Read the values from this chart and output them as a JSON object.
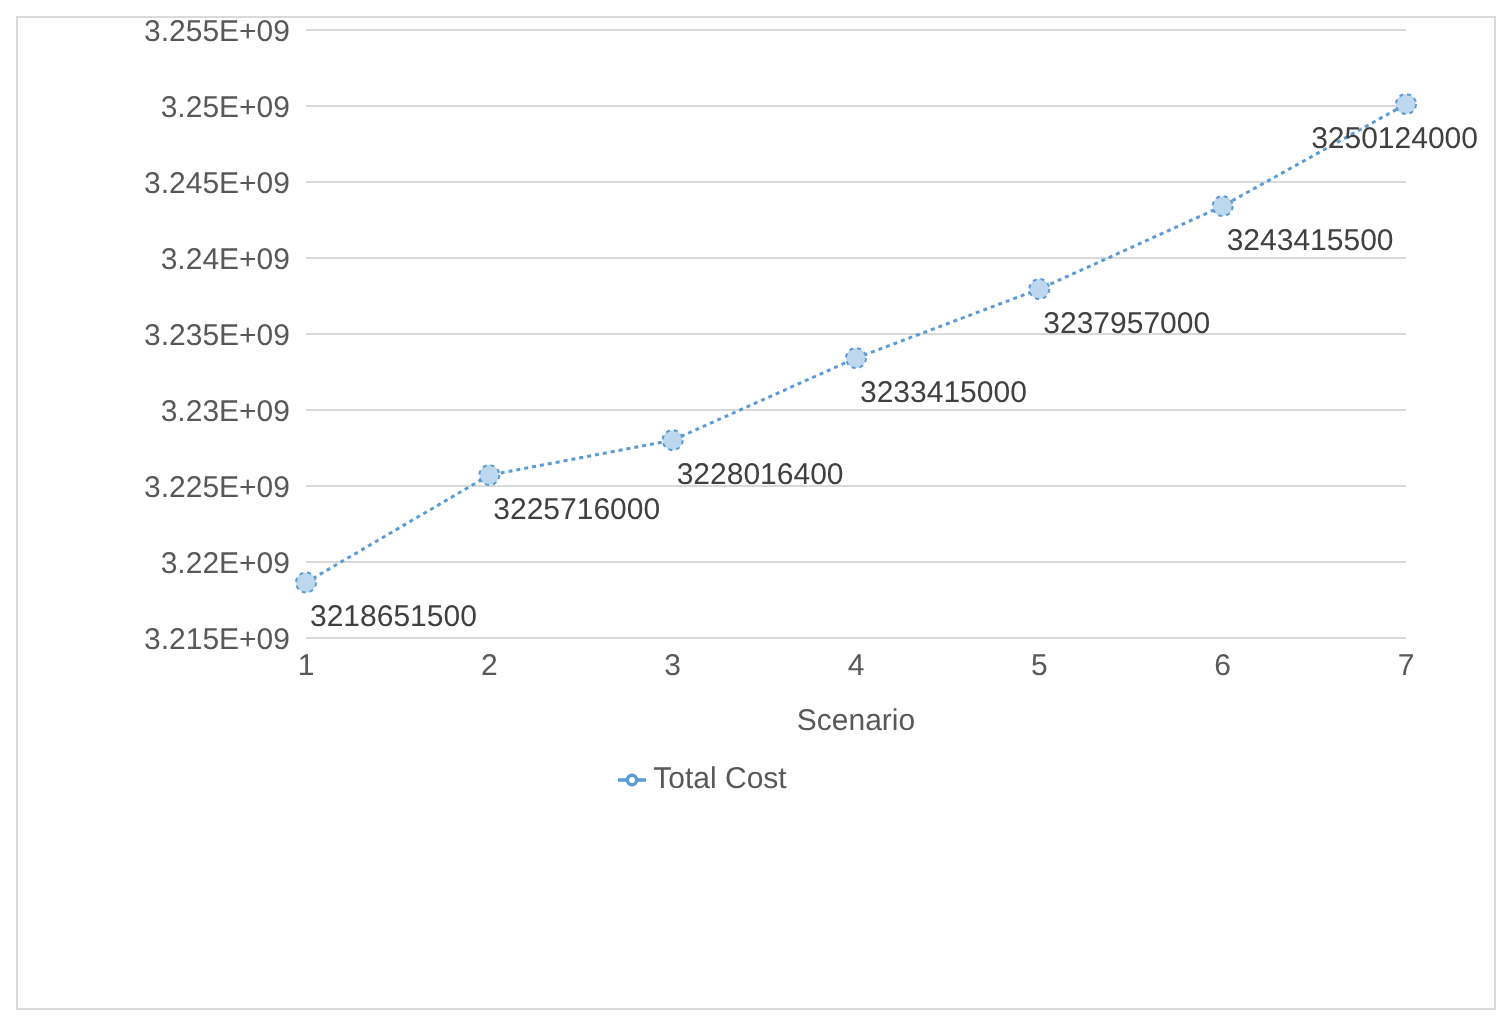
{
  "chart_data": {
    "type": "line",
    "xlabel": "Scenario",
    "categories": [
      "1",
      "2",
      "3",
      "4",
      "5",
      "6",
      "7"
    ],
    "series": [
      {
        "name": "Total Cost",
        "color": "#5b9bd5",
        "values": [
          3218651500,
          3225716000,
          3228016400,
          3233415000,
          3237957000,
          3243415500,
          3250124000
        ]
      }
    ],
    "ylim": [
      3215000000,
      3255000000
    ],
    "yticks": [
      {
        "value": 3215000000,
        "label": "3.215E+09"
      },
      {
        "value": 3220000000,
        "label": "3.22E+09"
      },
      {
        "value": 3225000000,
        "label": "3.225E+09"
      },
      {
        "value": 3230000000,
        "label": "3.23E+09"
      },
      {
        "value": 3235000000,
        "label": "3.235E+09"
      },
      {
        "value": 3240000000,
        "label": "3.24E+09"
      },
      {
        "value": 3245000000,
        "label": "3.245E+09"
      },
      {
        "value": 3250000000,
        "label": "3.25E+09"
      },
      {
        "value": 3255000000,
        "label": "3.255E+09"
      }
    ],
    "grid": "y",
    "legend": "bottom",
    "marker": "circle",
    "line_style": "dotted",
    "data_labels": true
  }
}
